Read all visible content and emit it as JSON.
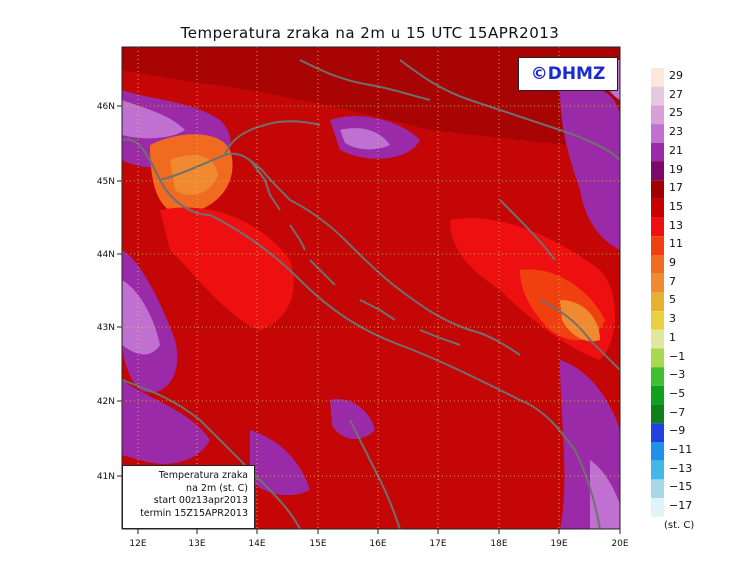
{
  "title": "Temperatura zraka na 2m u 15 UTC 15APR2013",
  "copyright": "©DHMZ",
  "info_box": {
    "line1": "Temperatura zraka",
    "line2": "na 2m (st. C)",
    "line3": "start 00z13apr2013",
    "line4": "termin 15Z15APR2013"
  },
  "axes": {
    "lon_ticks": [
      "12E",
      "13E",
      "14E",
      "15E",
      "16E",
      "17E",
      "18E",
      "19E",
      "20E"
    ],
    "lat_ticks": [
      "46N",
      "45N",
      "44N",
      "43N",
      "42N",
      "41N"
    ]
  },
  "legend": {
    "unit": "(st. C)",
    "labels": [
      "29",
      "27",
      "25",
      "23",
      "21",
      "19",
      "17",
      "15",
      "13",
      "11",
      "9",
      "7",
      "5",
      "3",
      "1",
      "−1",
      "−3",
      "−5",
      "−7",
      "−9",
      "−11",
      "−13",
      "−15",
      "−17"
    ],
    "colors": [
      "#fde8d8",
      "#e6c8e0",
      "#d8a0d8",
      "#c070d0",
      "#9a2aa8",
      "#7a0a6a",
      "#a00000",
      "#c80000",
      "#ee1010",
      "#f04010",
      "#f06a20",
      "#f08a30",
      "#e8b030",
      "#e8d040",
      "#e0e8a0",
      "#a8d850",
      "#40c030",
      "#10a020",
      "#108018",
      "#2040e0",
      "#2090e8",
      "#40b8e8",
      "#a8d8e8",
      "#e0f4f8"
    ]
  },
  "colors": {
    "background_field": "#c40606",
    "coastline": "#707070"
  }
}
